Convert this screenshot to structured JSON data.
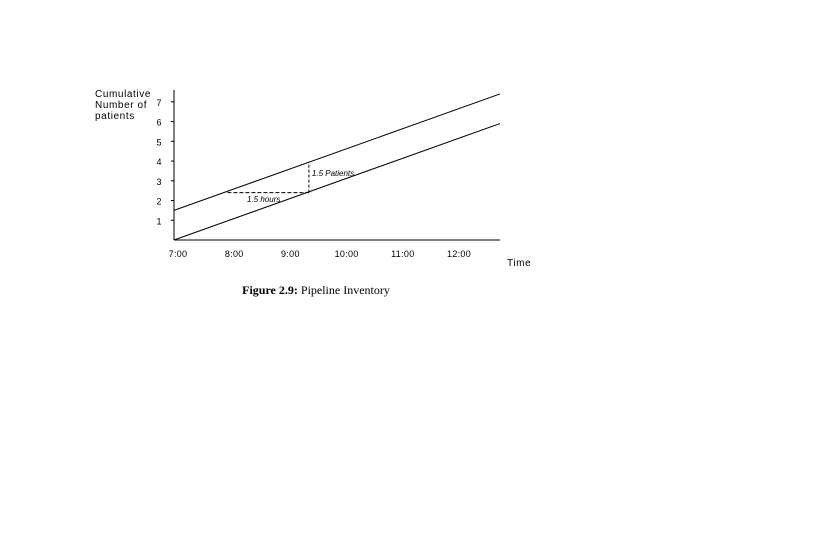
{
  "chart_data": {
    "type": "line",
    "ylabel": [
      "Cumulative",
      "Number of",
      "patients"
    ],
    "xlabel": "Time",
    "x_ticks": [
      "7:00",
      "8:00",
      "9:00",
      "10:00",
      "11:00",
      "12:00"
    ],
    "y_ticks": [
      1,
      2,
      3,
      4,
      5,
      6,
      7
    ],
    "xlim": [
      7.0,
      12.8
    ],
    "ylim": [
      0,
      7.6
    ],
    "series": [
      {
        "x": [
          7.0,
          12.8
        ],
        "y": [
          1.5,
          7.4
        ]
      },
      {
        "x": [
          7.0,
          12.8
        ],
        "y": [
          0,
          5.9
        ]
      }
    ],
    "annotations": [
      {
        "label": "1.5 Patients",
        "type": "vertical-dashed",
        "x": 9.4,
        "y_from": 2.4,
        "y_to": 3.95
      },
      {
        "label": "1.5 hours",
        "type": "horizontal-dashed",
        "y": 2.4,
        "x_from": 7.95,
        "x_to": 9.4
      }
    ]
  },
  "caption": {
    "label": "Figure 2.9:",
    "text": "Pipeline Inventory"
  }
}
